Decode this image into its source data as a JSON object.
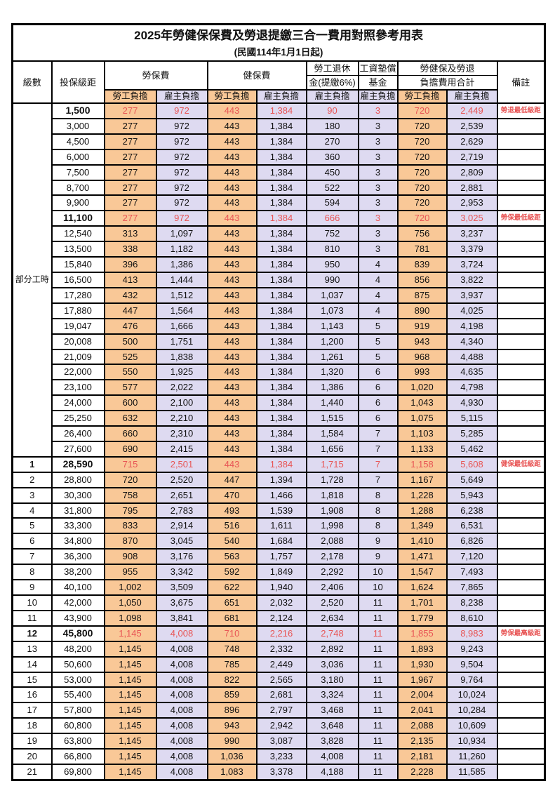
{
  "title": "2025年勞健保保費及勞退提繳三合一費用對照參考用表",
  "subtitle": "(民國114年1月1日起)",
  "colors": {
    "employee_bg": "#F9C897",
    "employer_bg": "#DEDAF1",
    "highlight_text": "#E85555"
  },
  "header": {
    "level": "級數",
    "salary_bracket": "投保級距",
    "labor_insurance": "勞保費",
    "health_insurance": "健保費",
    "pension_line1": "勞工退休",
    "pension_line2": "金(提繳6%)",
    "wage_fund_line1": "工資墊償",
    "wage_fund_line2": "基金",
    "total_line1": "勞健保及勞退",
    "total_line2": "負擔費用合計",
    "remark": "備註",
    "employee": "勞工負擔",
    "employer": "雇主負擔"
  },
  "part_time_label": "部分工時",
  "rows": [
    {
      "level": "",
      "salary": "1,500",
      "values": [
        "277",
        "972",
        "443",
        "1,384",
        "90",
        "3",
        "720",
        "2,449"
      ],
      "remark": "勞退最低級距",
      "highlight": true
    },
    {
      "level": "",
      "salary": "3,000",
      "values": [
        "277",
        "972",
        "443",
        "1,384",
        "180",
        "3",
        "720",
        "2,539"
      ],
      "remark": "",
      "highlight": false
    },
    {
      "level": "",
      "salary": "4,500",
      "values": [
        "277",
        "972",
        "443",
        "1,384",
        "270",
        "3",
        "720",
        "2,629"
      ],
      "remark": "",
      "highlight": false
    },
    {
      "level": "",
      "salary": "6,000",
      "values": [
        "277",
        "972",
        "443",
        "1,384",
        "360",
        "3",
        "720",
        "2,719"
      ],
      "remark": "",
      "highlight": false
    },
    {
      "level": "",
      "salary": "7,500",
      "values": [
        "277",
        "972",
        "443",
        "1,384",
        "450",
        "3",
        "720",
        "2,809"
      ],
      "remark": "",
      "highlight": false
    },
    {
      "level": "",
      "salary": "8,700",
      "values": [
        "277",
        "972",
        "443",
        "1,384",
        "522",
        "3",
        "720",
        "2,881"
      ],
      "remark": "",
      "highlight": false
    },
    {
      "level": "",
      "salary": "9,900",
      "values": [
        "277",
        "972",
        "443",
        "1,384",
        "594",
        "3",
        "720",
        "2,953"
      ],
      "remark": "",
      "highlight": false
    },
    {
      "level": "",
      "salary": "11,100",
      "values": [
        "277",
        "972",
        "443",
        "1,384",
        "666",
        "3",
        "720",
        "3,025"
      ],
      "remark": "勞保最低級距",
      "highlight": true
    },
    {
      "level": "",
      "salary": "12,540",
      "values": [
        "313",
        "1,097",
        "443",
        "1,384",
        "752",
        "3",
        "756",
        "3,237"
      ],
      "remark": "",
      "highlight": false
    },
    {
      "level": "",
      "salary": "13,500",
      "values": [
        "338",
        "1,182",
        "443",
        "1,384",
        "810",
        "3",
        "781",
        "3,379"
      ],
      "remark": "",
      "highlight": false
    },
    {
      "level": "",
      "salary": "15,840",
      "values": [
        "396",
        "1,386",
        "443",
        "1,384",
        "950",
        "4",
        "839",
        "3,724"
      ],
      "remark": "",
      "highlight": false
    },
    {
      "level": "",
      "salary": "16,500",
      "values": [
        "413",
        "1,444",
        "443",
        "1,384",
        "990",
        "4",
        "856",
        "3,822"
      ],
      "remark": "",
      "highlight": false
    },
    {
      "level": "",
      "salary": "17,280",
      "values": [
        "432",
        "1,512",
        "443",
        "1,384",
        "1,037",
        "4",
        "875",
        "3,937"
      ],
      "remark": "",
      "highlight": false
    },
    {
      "level": "",
      "salary": "17,880",
      "values": [
        "447",
        "1,564",
        "443",
        "1,384",
        "1,073",
        "4",
        "890",
        "4,025"
      ],
      "remark": "",
      "highlight": false
    },
    {
      "level": "",
      "salary": "19,047",
      "values": [
        "476",
        "1,666",
        "443",
        "1,384",
        "1,143",
        "5",
        "919",
        "4,198"
      ],
      "remark": "",
      "highlight": false
    },
    {
      "level": "",
      "salary": "20,008",
      "values": [
        "500",
        "1,751",
        "443",
        "1,384",
        "1,200",
        "5",
        "943",
        "4,340"
      ],
      "remark": "",
      "highlight": false
    },
    {
      "level": "",
      "salary": "21,009",
      "values": [
        "525",
        "1,838",
        "443",
        "1,384",
        "1,261",
        "5",
        "968",
        "4,488"
      ],
      "remark": "",
      "highlight": false
    },
    {
      "level": "",
      "salary": "22,000",
      "values": [
        "550",
        "1,925",
        "443",
        "1,384",
        "1,320",
        "6",
        "993",
        "4,635"
      ],
      "remark": "",
      "highlight": false
    },
    {
      "level": "",
      "salary": "23,100",
      "values": [
        "577",
        "2,022",
        "443",
        "1,384",
        "1,386",
        "6",
        "1,020",
        "4,798"
      ],
      "remark": "",
      "highlight": false
    },
    {
      "level": "",
      "salary": "24,000",
      "values": [
        "600",
        "2,100",
        "443",
        "1,384",
        "1,440",
        "6",
        "1,043",
        "4,930"
      ],
      "remark": "",
      "highlight": false
    },
    {
      "level": "",
      "salary": "25,250",
      "values": [
        "632",
        "2,210",
        "443",
        "1,384",
        "1,515",
        "6",
        "1,075",
        "5,115"
      ],
      "remark": "",
      "highlight": false
    },
    {
      "level": "",
      "salary": "26,400",
      "values": [
        "660",
        "2,310",
        "443",
        "1,384",
        "1,584",
        "7",
        "1,103",
        "5,285"
      ],
      "remark": "",
      "highlight": false
    },
    {
      "level": "",
      "salary": "27,600",
      "values": [
        "690",
        "2,415",
        "443",
        "1,384",
        "1,656",
        "7",
        "1,133",
        "5,462"
      ],
      "remark": "",
      "highlight": false
    },
    {
      "level": "1",
      "salary": "28,590",
      "values": [
        "715",
        "2,501",
        "443",
        "1,384",
        "1,715",
        "7",
        "1,158",
        "5,608"
      ],
      "remark": "健保最低級距",
      "highlight": true
    },
    {
      "level": "2",
      "salary": "28,800",
      "values": [
        "720",
        "2,520",
        "447",
        "1,394",
        "1,728",
        "7",
        "1,167",
        "5,649"
      ],
      "remark": "",
      "highlight": false
    },
    {
      "level": "3",
      "salary": "30,300",
      "values": [
        "758",
        "2,651",
        "470",
        "1,466",
        "1,818",
        "8",
        "1,228",
        "5,943"
      ],
      "remark": "",
      "highlight": false
    },
    {
      "level": "4",
      "salary": "31,800",
      "values": [
        "795",
        "2,783",
        "493",
        "1,539",
        "1,908",
        "8",
        "1,288",
        "6,238"
      ],
      "remark": "",
      "highlight": false
    },
    {
      "level": "5",
      "salary": "33,300",
      "values": [
        "833",
        "2,914",
        "516",
        "1,611",
        "1,998",
        "8",
        "1,349",
        "6,531"
      ],
      "remark": "",
      "highlight": false
    },
    {
      "level": "6",
      "salary": "34,800",
      "values": [
        "870",
        "3,045",
        "540",
        "1,684",
        "2,088",
        "9",
        "1,410",
        "6,826"
      ],
      "remark": "",
      "highlight": false
    },
    {
      "level": "7",
      "salary": "36,300",
      "values": [
        "908",
        "3,176",
        "563",
        "1,757",
        "2,178",
        "9",
        "1,471",
        "7,120"
      ],
      "remark": "",
      "highlight": false
    },
    {
      "level": "8",
      "salary": "38,200",
      "values": [
        "955",
        "3,342",
        "592",
        "1,849",
        "2,292",
        "10",
        "1,547",
        "7,493"
      ],
      "remark": "",
      "highlight": false
    },
    {
      "level": "9",
      "salary": "40,100",
      "values": [
        "1,002",
        "3,509",
        "622",
        "1,940",
        "2,406",
        "10",
        "1,624",
        "7,865"
      ],
      "remark": "",
      "highlight": false
    },
    {
      "level": "10",
      "salary": "42,000",
      "values": [
        "1,050",
        "3,675",
        "651",
        "2,032",
        "2,520",
        "11",
        "1,701",
        "8,238"
      ],
      "remark": "",
      "highlight": false
    },
    {
      "level": "11",
      "salary": "43,900",
      "values": [
        "1,098",
        "3,841",
        "681",
        "2,124",
        "2,634",
        "11",
        "1,779",
        "8,610"
      ],
      "remark": "",
      "highlight": false
    },
    {
      "level": "12",
      "salary": "45,800",
      "values": [
        "1,145",
        "4,008",
        "710",
        "2,216",
        "2,748",
        "11",
        "1,855",
        "8,983"
      ],
      "remark": "勞保最高級距",
      "highlight": true
    },
    {
      "level": "13",
      "salary": "48,200",
      "values": [
        "1,145",
        "4,008",
        "748",
        "2,332",
        "2,892",
        "11",
        "1,893",
        "9,243"
      ],
      "remark": "",
      "highlight": false
    },
    {
      "level": "14",
      "salary": "50,600",
      "values": [
        "1,145",
        "4,008",
        "785",
        "2,449",
        "3,036",
        "11",
        "1,930",
        "9,504"
      ],
      "remark": "",
      "highlight": false
    },
    {
      "level": "15",
      "salary": "53,000",
      "values": [
        "1,145",
        "4,008",
        "822",
        "2,565",
        "3,180",
        "11",
        "1,967",
        "9,764"
      ],
      "remark": "",
      "highlight": false
    },
    {
      "level": "16",
      "salary": "55,400",
      "values": [
        "1,145",
        "4,008",
        "859",
        "2,681",
        "3,324",
        "11",
        "2,004",
        "10,024"
      ],
      "remark": "",
      "highlight": false
    },
    {
      "level": "17",
      "salary": "57,800",
      "values": [
        "1,145",
        "4,008",
        "896",
        "2,797",
        "3,468",
        "11",
        "2,041",
        "10,284"
      ],
      "remark": "",
      "highlight": false
    },
    {
      "level": "18",
      "salary": "60,800",
      "values": [
        "1,145",
        "4,008",
        "943",
        "2,942",
        "3,648",
        "11",
        "2,088",
        "10,609"
      ],
      "remark": "",
      "highlight": false
    },
    {
      "level": "19",
      "salary": "63,800",
      "values": [
        "1,145",
        "4,008",
        "990",
        "3,087",
        "3,828",
        "11",
        "2,135",
        "10,934"
      ],
      "remark": "",
      "highlight": false
    },
    {
      "level": "20",
      "salary": "66,800",
      "values": [
        "1,145",
        "4,008",
        "1,036",
        "3,233",
        "4,008",
        "11",
        "2,181",
        "11,260"
      ],
      "remark": "",
      "highlight": false
    },
    {
      "level": "21",
      "salary": "69,800",
      "values": [
        "1,145",
        "4,008",
        "1,083",
        "3,378",
        "4,188",
        "11",
        "2,228",
        "11,585"
      ],
      "remark": "",
      "highlight": false
    }
  ]
}
